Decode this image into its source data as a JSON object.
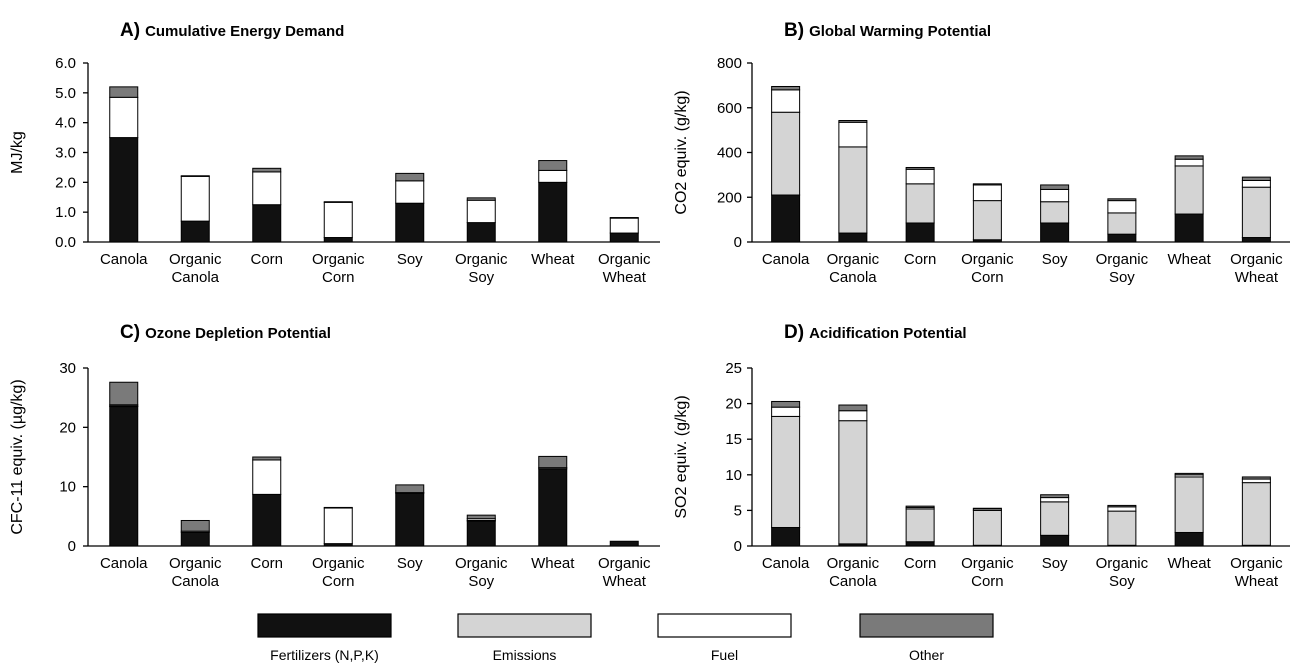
{
  "legend": {
    "items": [
      {
        "label": "Fertilizers (N,P,K)",
        "color": "#111111"
      },
      {
        "label": "Emissions",
        "color": "#d4d4d4"
      },
      {
        "label": "Fuel",
        "color": "#ffffff"
      },
      {
        "label": "Other",
        "color": "#7a7a7a"
      }
    ]
  },
  "chart_data": [
    {
      "type": "bar",
      "stacked": true,
      "panel_letter": "A)",
      "title": "Cumulative Energy Demand",
      "ylabel": "MJ/kg",
      "ylim": [
        0,
        6
      ],
      "yticks": [
        "0.0",
        "1.0",
        "2.0",
        "3.0",
        "4.0",
        "5.0",
        "6.0"
      ],
      "categories": [
        [
          "Canola"
        ],
        [
          "Organic",
          "Canola"
        ],
        [
          "Corn"
        ],
        [
          "Organic",
          "Corn"
        ],
        [
          "Soy"
        ],
        [
          "Organic",
          "Soy"
        ],
        [
          "Wheat"
        ],
        [
          "Organic",
          "Wheat"
        ]
      ],
      "series": [
        {
          "name": "Fertilizers (N,P,K)",
          "values": [
            3.5,
            0.7,
            1.25,
            0.15,
            1.3,
            0.65,
            2.0,
            0.3
          ]
        },
        {
          "name": "Emissions",
          "values": [
            0,
            0,
            0,
            0,
            0,
            0,
            0,
            0
          ]
        },
        {
          "name": "Fuel",
          "values": [
            1.35,
            1.5,
            1.1,
            1.18,
            0.75,
            0.75,
            0.4,
            0.5
          ]
        },
        {
          "name": "Other",
          "values": [
            0.35,
            0.02,
            0.12,
            0.02,
            0.25,
            0.08,
            0.33,
            0.02
          ]
        }
      ]
    },
    {
      "type": "bar",
      "stacked": true,
      "panel_letter": "B)",
      "title": "Global Warming Potential",
      "ylabel": "CO2 equiv. (g/kg)",
      "ylim": [
        0,
        800
      ],
      "yticks": [
        "0",
        "200",
        "400",
        "600",
        "800"
      ],
      "categories": [
        [
          "Canola"
        ],
        [
          "Organic",
          "Canola"
        ],
        [
          "Corn"
        ],
        [
          "Organic",
          "Corn"
        ],
        [
          "Soy"
        ],
        [
          "Organic",
          "Soy"
        ],
        [
          "Wheat"
        ],
        [
          "Organic",
          "Wheat"
        ]
      ],
      "series": [
        {
          "name": "Fertilizers (N,P,K)",
          "values": [
            210,
            40,
            85,
            10,
            85,
            35,
            125,
            20
          ]
        },
        {
          "name": "Emissions",
          "values": [
            370,
            385,
            175,
            175,
            95,
            95,
            215,
            225
          ]
        },
        {
          "name": "Fuel",
          "values": [
            100,
            110,
            65,
            70,
            55,
            55,
            30,
            30
          ]
        },
        {
          "name": "Other",
          "values": [
            15,
            8,
            8,
            5,
            20,
            8,
            15,
            15
          ]
        }
      ]
    },
    {
      "type": "bar",
      "stacked": true,
      "panel_letter": "C)",
      "title": "Ozone Depletion Potential",
      "ylabel": "CFC-11 equiv. (µg/kg)",
      "ylim": [
        0,
        30
      ],
      "yticks": [
        "0",
        "10",
        "20",
        "30"
      ],
      "categories": [
        [
          "Canola"
        ],
        [
          "Organic",
          "Canola"
        ],
        [
          "Corn"
        ],
        [
          "Organic",
          "Corn"
        ],
        [
          "Soy"
        ],
        [
          "Organic",
          "Soy"
        ],
        [
          "Wheat"
        ],
        [
          "Organic",
          "Wheat"
        ]
      ],
      "series": [
        {
          "name": "Fertilizers (N,P,K)",
          "values": [
            23.5,
            2.3,
            8.7,
            0.4,
            8.9,
            4.2,
            13.0,
            0.8
          ]
        },
        {
          "name": "Emissions",
          "values": [
            0.1,
            0,
            0,
            0,
            0,
            0.1,
            0,
            0
          ]
        },
        {
          "name": "Fuel",
          "values": [
            0.2,
            0.2,
            5.8,
            6.0,
            0.1,
            0.3,
            0.2,
            0
          ]
        },
        {
          "name": "Other",
          "values": [
            3.8,
            1.8,
            0.5,
            0.1,
            1.3,
            0.6,
            1.9,
            0
          ]
        }
      ]
    },
    {
      "type": "bar",
      "stacked": true,
      "panel_letter": "D)",
      "title": "Acidification Potential",
      "ylabel": "SO2 equiv. (g/kg)",
      "ylim": [
        0,
        25
      ],
      "yticks": [
        "0",
        "5",
        "10",
        "15",
        "20",
        "25"
      ],
      "categories": [
        [
          "Canola"
        ],
        [
          "Organic",
          "Canola"
        ],
        [
          "Corn"
        ],
        [
          "Organic",
          "Corn"
        ],
        [
          "Soy"
        ],
        [
          "Organic",
          "Soy"
        ],
        [
          "Wheat"
        ],
        [
          "Organic",
          "Wheat"
        ]
      ],
      "series": [
        {
          "name": "Fertilizers (N,P,K)",
          "values": [
            2.6,
            0.3,
            0.6,
            0.1,
            1.5,
            0.1,
            1.9,
            0.1
          ]
        },
        {
          "name": "Emissions",
          "values": [
            15.6,
            17.3,
            4.6,
            4.9,
            4.7,
            4.8,
            7.8,
            8.8
          ]
        },
        {
          "name": "Fuel",
          "values": [
            1.3,
            1.4,
            0.2,
            0.2,
            0.6,
            0.6,
            0.3,
            0.5
          ]
        },
        {
          "name": "Other",
          "values": [
            0.8,
            0.8,
            0.2,
            0.1,
            0.4,
            0.2,
            0.2,
            0.3
          ]
        }
      ]
    }
  ]
}
